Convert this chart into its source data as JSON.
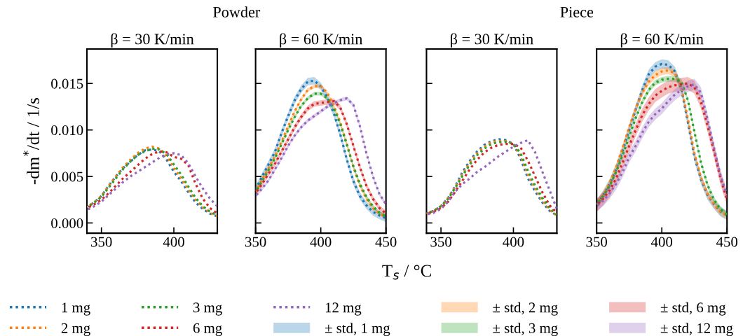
{
  "chart_data": [
    {
      "type": "line",
      "title": "Powder",
      "subtitle": "β = 30 K/min",
      "ylabel": "-dm$^{*}$/dt / 1/s",
      "legend": "bottom",
      "line_style": "dotted",
      "marker": "none",
      "grid": false,
      "xlim": [
        340,
        430
      ],
      "xticks": [
        350,
        400
      ],
      "ylim": [
        -0.0011,
        0.0187
      ],
      "yticks": [
        {
          "value": 0,
          "label": "0.000"
        },
        {
          "value": 0.005,
          "label": "0.005"
        },
        {
          "value": 0.01,
          "label": "0.010"
        },
        {
          "value": 0.015,
          "label": "0.015"
        }
      ],
      "x": [
        340,
        345,
        350,
        355,
        360,
        365,
        370,
        375,
        380,
        385,
        390,
        395,
        400,
        405,
        410,
        415,
        420,
        425,
        430
      ],
      "series": [
        {
          "name": "1 mg",
          "color": "#1f77b4",
          "values": [
            0.0017,
            0.0022,
            0.0029,
            0.004,
            0.005,
            0.0059,
            0.0066,
            0.0073,
            0.0078,
            0.0079,
            0.0077,
            0.0068,
            0.0055,
            0.0045,
            0.0033,
            0.0022,
            0.0015,
            0.001,
            0.0007
          ]
        },
        {
          "name": "2 mg",
          "color": "#ff7f0e",
          "values": [
            0.0017,
            0.0022,
            0.0029,
            0.004,
            0.005,
            0.006,
            0.0068,
            0.0075,
            0.008,
            0.0082,
            0.008,
            0.0072,
            0.0059,
            0.0048,
            0.0036,
            0.0025,
            0.0017,
            0.0011,
            0.0007
          ]
        },
        {
          "name": "3 mg",
          "color": "#2ca02c",
          "values": [
            0.0017,
            0.0022,
            0.0028,
            0.0038,
            0.0048,
            0.0058,
            0.0066,
            0.0073,
            0.0077,
            0.008,
            0.0079,
            0.0074,
            0.0063,
            0.0052,
            0.0039,
            0.0027,
            0.0018,
            0.0012,
            0.0008
          ]
        },
        {
          "name": "6 mg",
          "color": "#d62728",
          "values": [
            0.0016,
            0.002,
            0.0025,
            0.0032,
            0.004,
            0.0048,
            0.0055,
            0.0062,
            0.0069,
            0.0074,
            0.0077,
            0.0076,
            0.0071,
            0.0069,
            0.0062,
            0.0042,
            0.0026,
            0.0016,
            0.001
          ]
        },
        {
          "name": "12 mg",
          "color": "#9467bd",
          "values": [
            0.0014,
            0.0018,
            0.0023,
            0.003,
            0.0037,
            0.0044,
            0.005,
            0.0055,
            0.006,
            0.0065,
            0.007,
            0.0074,
            0.0075,
            0.0073,
            0.0064,
            0.005,
            0.0037,
            0.0026,
            0.0018
          ]
        }
      ]
    },
    {
      "type": "line",
      "subtitle": "β = 60 K/min",
      "xlabel": "T$_{s}$ / °C",
      "legend": "bottom",
      "line_style": "dotted",
      "marker": "none",
      "grid": false,
      "tick_labels": "x",
      "annotations": [
        "± std, 1 mg",
        "± std, 2 mg",
        "± std, 3 mg",
        "± std, 6 mg",
        "± std, 12 mg"
      ],
      "xlim": [
        350,
        450
      ],
      "xticks": [
        350,
        400,
        450
      ],
      "ylim": [
        -0.0011,
        0.0187
      ],
      "yticks": [
        0,
        0.005,
        0.01,
        0.015
      ],
      "x": [
        350,
        355,
        360,
        365,
        370,
        375,
        380,
        385,
        390,
        395,
        400,
        405,
        410,
        415,
        420,
        425,
        430,
        435,
        440,
        445,
        450
      ],
      "series": [
        {
          "name": "1 mg",
          "color": "#1f77b4",
          "values": [
            0.0036,
            0.005,
            0.0063,
            0.0077,
            0.0097,
            0.0115,
            0.0132,
            0.0144,
            0.0152,
            0.0153,
            0.0147,
            0.0135,
            0.0118,
            0.0095,
            0.0068,
            0.0045,
            0.0029,
            0.0019,
            0.0012,
            0.0008,
            0.0005
          ],
          "lower": [
            0.0032,
            0.0046,
            0.0059,
            0.0073,
            0.0093,
            0.0111,
            0.0128,
            0.014,
            0.0148,
            0.0149,
            0.0143,
            0.0131,
            0.0114,
            0.0091,
            0.0064,
            0.0041,
            0.0025,
            0.0015,
            0.0008,
            0.0004,
            0.0001
          ],
          "upper": [
            0.004,
            0.0054,
            0.0067,
            0.0081,
            0.0101,
            0.0119,
            0.0136,
            0.0148,
            0.0156,
            0.0157,
            0.0151,
            0.0139,
            0.0122,
            0.0099,
            0.0072,
            0.0049,
            0.0033,
            0.0023,
            0.0016,
            0.0012,
            0.0009
          ]
        },
        {
          "name": "2 mg",
          "color": "#ff7f0e",
          "values": [
            0.0034,
            0.0047,
            0.0059,
            0.0072,
            0.0088,
            0.0104,
            0.012,
            0.0133,
            0.0143,
            0.0147,
            0.0147,
            0.014,
            0.0126,
            0.0108,
            0.0085,
            0.006,
            0.004,
            0.0026,
            0.0016,
            0.001,
            0.0006
          ],
          "lower": [
            0.0032,
            0.0045,
            0.0057,
            0.007,
            0.0086,
            0.0102,
            0.0118,
            0.0131,
            0.0141,
            0.0145,
            0.0145,
            0.0138,
            0.0124,
            0.0106,
            0.0083,
            0.0058,
            0.0038,
            0.0024,
            0.0014,
            0.0008,
            0.0004
          ],
          "upper": [
            0.0036,
            0.0049,
            0.0061,
            0.0074,
            0.009,
            0.0106,
            0.0122,
            0.0135,
            0.0145,
            0.0149,
            0.0149,
            0.0142,
            0.0128,
            0.011,
            0.0087,
            0.0062,
            0.0042,
            0.0028,
            0.0018,
            0.0012,
            0.0008
          ]
        },
        {
          "name": "3 mg",
          "color": "#2ca02c",
          "values": [
            0.0033,
            0.0045,
            0.0057,
            0.007,
            0.0085,
            0.01,
            0.0114,
            0.0126,
            0.0134,
            0.0139,
            0.0139,
            0.0134,
            0.0123,
            0.0106,
            0.0084,
            0.0061,
            0.0042,
            0.0028,
            0.0018,
            0.0011,
            0.0007
          ],
          "lower": [
            0.0031,
            0.0043,
            0.0055,
            0.0068,
            0.0083,
            0.0098,
            0.0112,
            0.0124,
            0.0132,
            0.0137,
            0.0137,
            0.0132,
            0.0121,
            0.0104,
            0.0082,
            0.0059,
            0.004,
            0.0026,
            0.0016,
            0.0009,
            0.0005
          ],
          "upper": [
            0.0035,
            0.0047,
            0.0059,
            0.0072,
            0.0087,
            0.0102,
            0.0116,
            0.0128,
            0.0136,
            0.0141,
            0.0141,
            0.0136,
            0.0125,
            0.0108,
            0.0086,
            0.0063,
            0.0044,
            0.003,
            0.002,
            0.0013,
            0.0009
          ]
        },
        {
          "name": "6 mg",
          "color": "#d62728",
          "values": [
            0.0032,
            0.0042,
            0.0053,
            0.0064,
            0.0077,
            0.009,
            0.0103,
            0.0114,
            0.0123,
            0.0128,
            0.0129,
            0.013,
            0.0131,
            0.0124,
            0.0106,
            0.0083,
            0.006,
            0.004,
            0.0026,
            0.0016,
            0.001
          ],
          "lower": [
            0.0029,
            0.0039,
            0.005,
            0.0061,
            0.0074,
            0.0087,
            0.01,
            0.0111,
            0.012,
            0.0125,
            0.0126,
            0.0127,
            0.0128,
            0.0121,
            0.0103,
            0.008,
            0.0057,
            0.0037,
            0.0023,
            0.0013,
            0.0007
          ],
          "upper": [
            0.0035,
            0.0045,
            0.0056,
            0.0067,
            0.008,
            0.0093,
            0.0106,
            0.0117,
            0.0126,
            0.0131,
            0.0132,
            0.0133,
            0.0134,
            0.0127,
            0.0109,
            0.0086,
            0.0063,
            0.0043,
            0.0029,
            0.0019,
            0.0013
          ]
        },
        {
          "name": "12 mg",
          "color": "#9467bd",
          "values": [
            0.0029,
            0.0037,
            0.0046,
            0.0058,
            0.007,
            0.0083,
            0.0094,
            0.0103,
            0.011,
            0.0115,
            0.012,
            0.0125,
            0.0129,
            0.0132,
            0.0134,
            0.0127,
            0.0104,
            0.0075,
            0.005,
            0.0031,
            0.002
          ],
          "lower": [
            0.0027,
            0.0035,
            0.0044,
            0.0056,
            0.0068,
            0.0081,
            0.0092,
            0.0101,
            0.0108,
            0.0113,
            0.0118,
            0.0123,
            0.0127,
            0.013,
            0.0132,
            0.0125,
            0.0102,
            0.0073,
            0.0048,
            0.0029,
            0.0018
          ],
          "upper": [
            0.0031,
            0.0039,
            0.0048,
            0.006,
            0.0072,
            0.0085,
            0.0096,
            0.0105,
            0.0112,
            0.0117,
            0.0122,
            0.0127,
            0.0131,
            0.0134,
            0.0136,
            0.0129,
            0.0106,
            0.0077,
            0.0052,
            0.0033,
            0.0022
          ]
        }
      ]
    },
    {
      "type": "line",
      "title": "Piece",
      "subtitle": "β = 30 K/min",
      "line_style": "dotted",
      "marker": "none",
      "grid": false,
      "tick_labels": "x",
      "xlim": [
        340,
        430
      ],
      "xticks": [
        350,
        400
      ],
      "ylim": [
        -0.0011,
        0.0187
      ],
      "yticks": [
        0,
        0.005,
        0.01,
        0.015
      ],
      "x": [
        340,
        345,
        350,
        355,
        360,
        365,
        370,
        375,
        380,
        385,
        390,
        395,
        400,
        405,
        410,
        415,
        420,
        425,
        430
      ],
      "series": [
        {
          "name": "1 mg",
          "color": "#1f77b4",
          "values": [
            0.001,
            0.0013,
            0.0018,
            0.0027,
            0.004,
            0.0055,
            0.0067,
            0.0077,
            0.0084,
            0.0088,
            0.009,
            0.0089,
            0.0085,
            0.0069,
            0.0048,
            0.0034,
            0.0022,
            0.0013,
            0.0008
          ]
        },
        {
          "name": "2 mg",
          "color": "#ff7f0e",
          "values": [
            0.001,
            0.0013,
            0.0018,
            0.0027,
            0.0039,
            0.0053,
            0.0065,
            0.0075,
            0.0082,
            0.0087,
            0.0088,
            0.0088,
            0.0085,
            0.0072,
            0.0052,
            0.0037,
            0.0024,
            0.0014,
            0.0008
          ]
        },
        {
          "name": "3 mg",
          "color": "#2ca02c",
          "values": [
            0.001,
            0.0013,
            0.0018,
            0.0026,
            0.0038,
            0.0051,
            0.0063,
            0.0073,
            0.008,
            0.0085,
            0.0087,
            0.0087,
            0.0085,
            0.0075,
            0.0056,
            0.004,
            0.0027,
            0.0016,
            0.0009
          ]
        },
        {
          "name": "6 mg",
          "color": "#d62728",
          "values": [
            0.001,
            0.0012,
            0.0016,
            0.0023,
            0.0034,
            0.0046,
            0.0058,
            0.0068,
            0.0076,
            0.0081,
            0.0084,
            0.0085,
            0.0085,
            0.0081,
            0.0067,
            0.005,
            0.0033,
            0.0019,
            0.0011
          ]
        },
        {
          "name": "12 mg",
          "color": "#9467bd",
          "values": [
            0.0009,
            0.0011,
            0.0015,
            0.0023,
            0.0034,
            0.0042,
            0.0048,
            0.0055,
            0.006,
            0.0066,
            0.0072,
            0.0077,
            0.0082,
            0.0086,
            0.0089,
            0.0076,
            0.0055,
            0.0035,
            0.0015
          ]
        }
      ]
    },
    {
      "type": "line",
      "subtitle": "β = 60 K/min",
      "line_style": "dotted",
      "marker": "none",
      "grid": false,
      "tick_labels": "x",
      "xlim": [
        350,
        450
      ],
      "xticks": [
        350,
        400,
        450
      ],
      "ylim": [
        -0.0011,
        0.0187
      ],
      "yticks": [
        0,
        0.005,
        0.01,
        0.015
      ],
      "x": [
        350,
        355,
        360,
        365,
        370,
        375,
        380,
        385,
        390,
        395,
        400,
        405,
        410,
        415,
        420,
        425,
        430,
        435,
        440,
        445,
        450
      ],
      "series": [
        {
          "name": "1 mg",
          "color": "#1f77b4",
          "values": [
            0.002,
            0.003,
            0.0042,
            0.0058,
            0.0078,
            0.01,
            0.0122,
            0.0143,
            0.016,
            0.0168,
            0.0171,
            0.017,
            0.0163,
            0.0144,
            0.0108,
            0.0071,
            0.0047,
            0.003,
            0.002,
            0.0012,
            0.0008
          ],
          "lower": [
            0.0015,
            0.0025,
            0.0037,
            0.0053,
            0.0073,
            0.0095,
            0.0117,
            0.0138,
            0.0155,
            0.0163,
            0.0166,
            0.0165,
            0.0158,
            0.0139,
            0.0103,
            0.0066,
            0.0042,
            0.0025,
            0.0015,
            0.0007,
            0.0003
          ],
          "upper": [
            0.0025,
            0.0035,
            0.0047,
            0.0063,
            0.0083,
            0.0105,
            0.0127,
            0.0148,
            0.0165,
            0.0173,
            0.0176,
            0.0175,
            0.0168,
            0.0149,
            0.0113,
            0.0076,
            0.0052,
            0.0035,
            0.0025,
            0.0017,
            0.0013
          ]
        },
        {
          "name": "2 mg",
          "color": "#ff7f0e",
          "values": [
            0.002,
            0.003,
            0.0043,
            0.006,
            0.0081,
            0.0103,
            0.0123,
            0.014,
            0.0152,
            0.0159,
            0.0163,
            0.0164,
            0.0161,
            0.0146,
            0.0112,
            0.0075,
            0.0049,
            0.0031,
            0.002,
            0.0012,
            0.0008
          ],
          "lower": [
            0.0016,
            0.0026,
            0.0039,
            0.0056,
            0.0077,
            0.0099,
            0.0119,
            0.0136,
            0.0148,
            0.0155,
            0.0159,
            0.016,
            0.0157,
            0.0142,
            0.0108,
            0.0071,
            0.0045,
            0.0027,
            0.0016,
            0.0008,
            0.0004
          ],
          "upper": [
            0.0024,
            0.0034,
            0.0047,
            0.0064,
            0.0085,
            0.0107,
            0.0127,
            0.0144,
            0.0156,
            0.0163,
            0.0167,
            0.0168,
            0.0165,
            0.015,
            0.0116,
            0.0079,
            0.0053,
            0.0035,
            0.0024,
            0.0016,
            0.0012
          ]
        },
        {
          "name": "3 mg",
          "color": "#2ca02c",
          "values": [
            0.002,
            0.0029,
            0.004,
            0.0055,
            0.0073,
            0.0093,
            0.0113,
            0.013,
            0.0143,
            0.0151,
            0.0154,
            0.0155,
            0.0155,
            0.0152,
            0.0132,
            0.0098,
            0.0065,
            0.0041,
            0.0025,
            0.0015,
            0.0009
          ],
          "lower": [
            0.0017,
            0.0026,
            0.0037,
            0.0052,
            0.007,
            0.009,
            0.011,
            0.0127,
            0.014,
            0.0148,
            0.0151,
            0.0152,
            0.0152,
            0.0149,
            0.0129,
            0.0095,
            0.0062,
            0.0038,
            0.0022,
            0.0012,
            0.0006
          ],
          "upper": [
            0.0023,
            0.0032,
            0.0043,
            0.0058,
            0.0076,
            0.0096,
            0.0116,
            0.0133,
            0.0146,
            0.0154,
            0.0157,
            0.0158,
            0.0158,
            0.0155,
            0.0135,
            0.0101,
            0.0068,
            0.0044,
            0.0028,
            0.0018,
            0.0012
          ]
        },
        {
          "name": "6 mg",
          "color": "#d62728",
          "values": [
            0.0019,
            0.0026,
            0.0035,
            0.0048,
            0.0065,
            0.0083,
            0.01,
            0.0116,
            0.0128,
            0.0137,
            0.0142,
            0.0146,
            0.0148,
            0.0149,
            0.015,
            0.0146,
            0.013,
            0.0105,
            0.0077,
            0.0048,
            0.0025
          ],
          "lower": [
            0.0012,
            0.0019,
            0.0028,
            0.0041,
            0.0058,
            0.0076,
            0.0093,
            0.0109,
            0.0121,
            0.013,
            0.0135,
            0.0139,
            0.0141,
            0.0142,
            0.0143,
            0.0139,
            0.0123,
            0.0098,
            0.007,
            0.0041,
            0.0018
          ],
          "upper": [
            0.0026,
            0.0033,
            0.0042,
            0.0055,
            0.0072,
            0.009,
            0.0107,
            0.0123,
            0.0135,
            0.0144,
            0.0149,
            0.0153,
            0.0155,
            0.0156,
            0.0157,
            0.0153,
            0.0137,
            0.0112,
            0.0084,
            0.0055,
            0.0032
          ]
        },
        {
          "name": "12 mg",
          "color": "#9467bd",
          "values": [
            0.0018,
            0.0024,
            0.0032,
            0.0042,
            0.0055,
            0.0071,
            0.0083,
            0.0097,
            0.0109,
            0.0117,
            0.0123,
            0.0131,
            0.0138,
            0.0143,
            0.0147,
            0.0149,
            0.014,
            0.0112,
            0.0081,
            0.0051,
            0.003
          ],
          "lower": [
            0.0012,
            0.0018,
            0.0026,
            0.0036,
            0.0049,
            0.0065,
            0.0077,
            0.0091,
            0.0103,
            0.0111,
            0.0117,
            0.0125,
            0.0132,
            0.0137,
            0.0141,
            0.0143,
            0.0134,
            0.0106,
            0.0075,
            0.0045,
            0.0024
          ],
          "upper": [
            0.0024,
            0.003,
            0.0038,
            0.0048,
            0.0061,
            0.0077,
            0.0089,
            0.0103,
            0.0115,
            0.0123,
            0.0129,
            0.0137,
            0.0144,
            0.0149,
            0.0153,
            0.0155,
            0.0146,
            0.0118,
            0.0087,
            0.0057,
            0.0036
          ]
        }
      ]
    }
  ]
}
